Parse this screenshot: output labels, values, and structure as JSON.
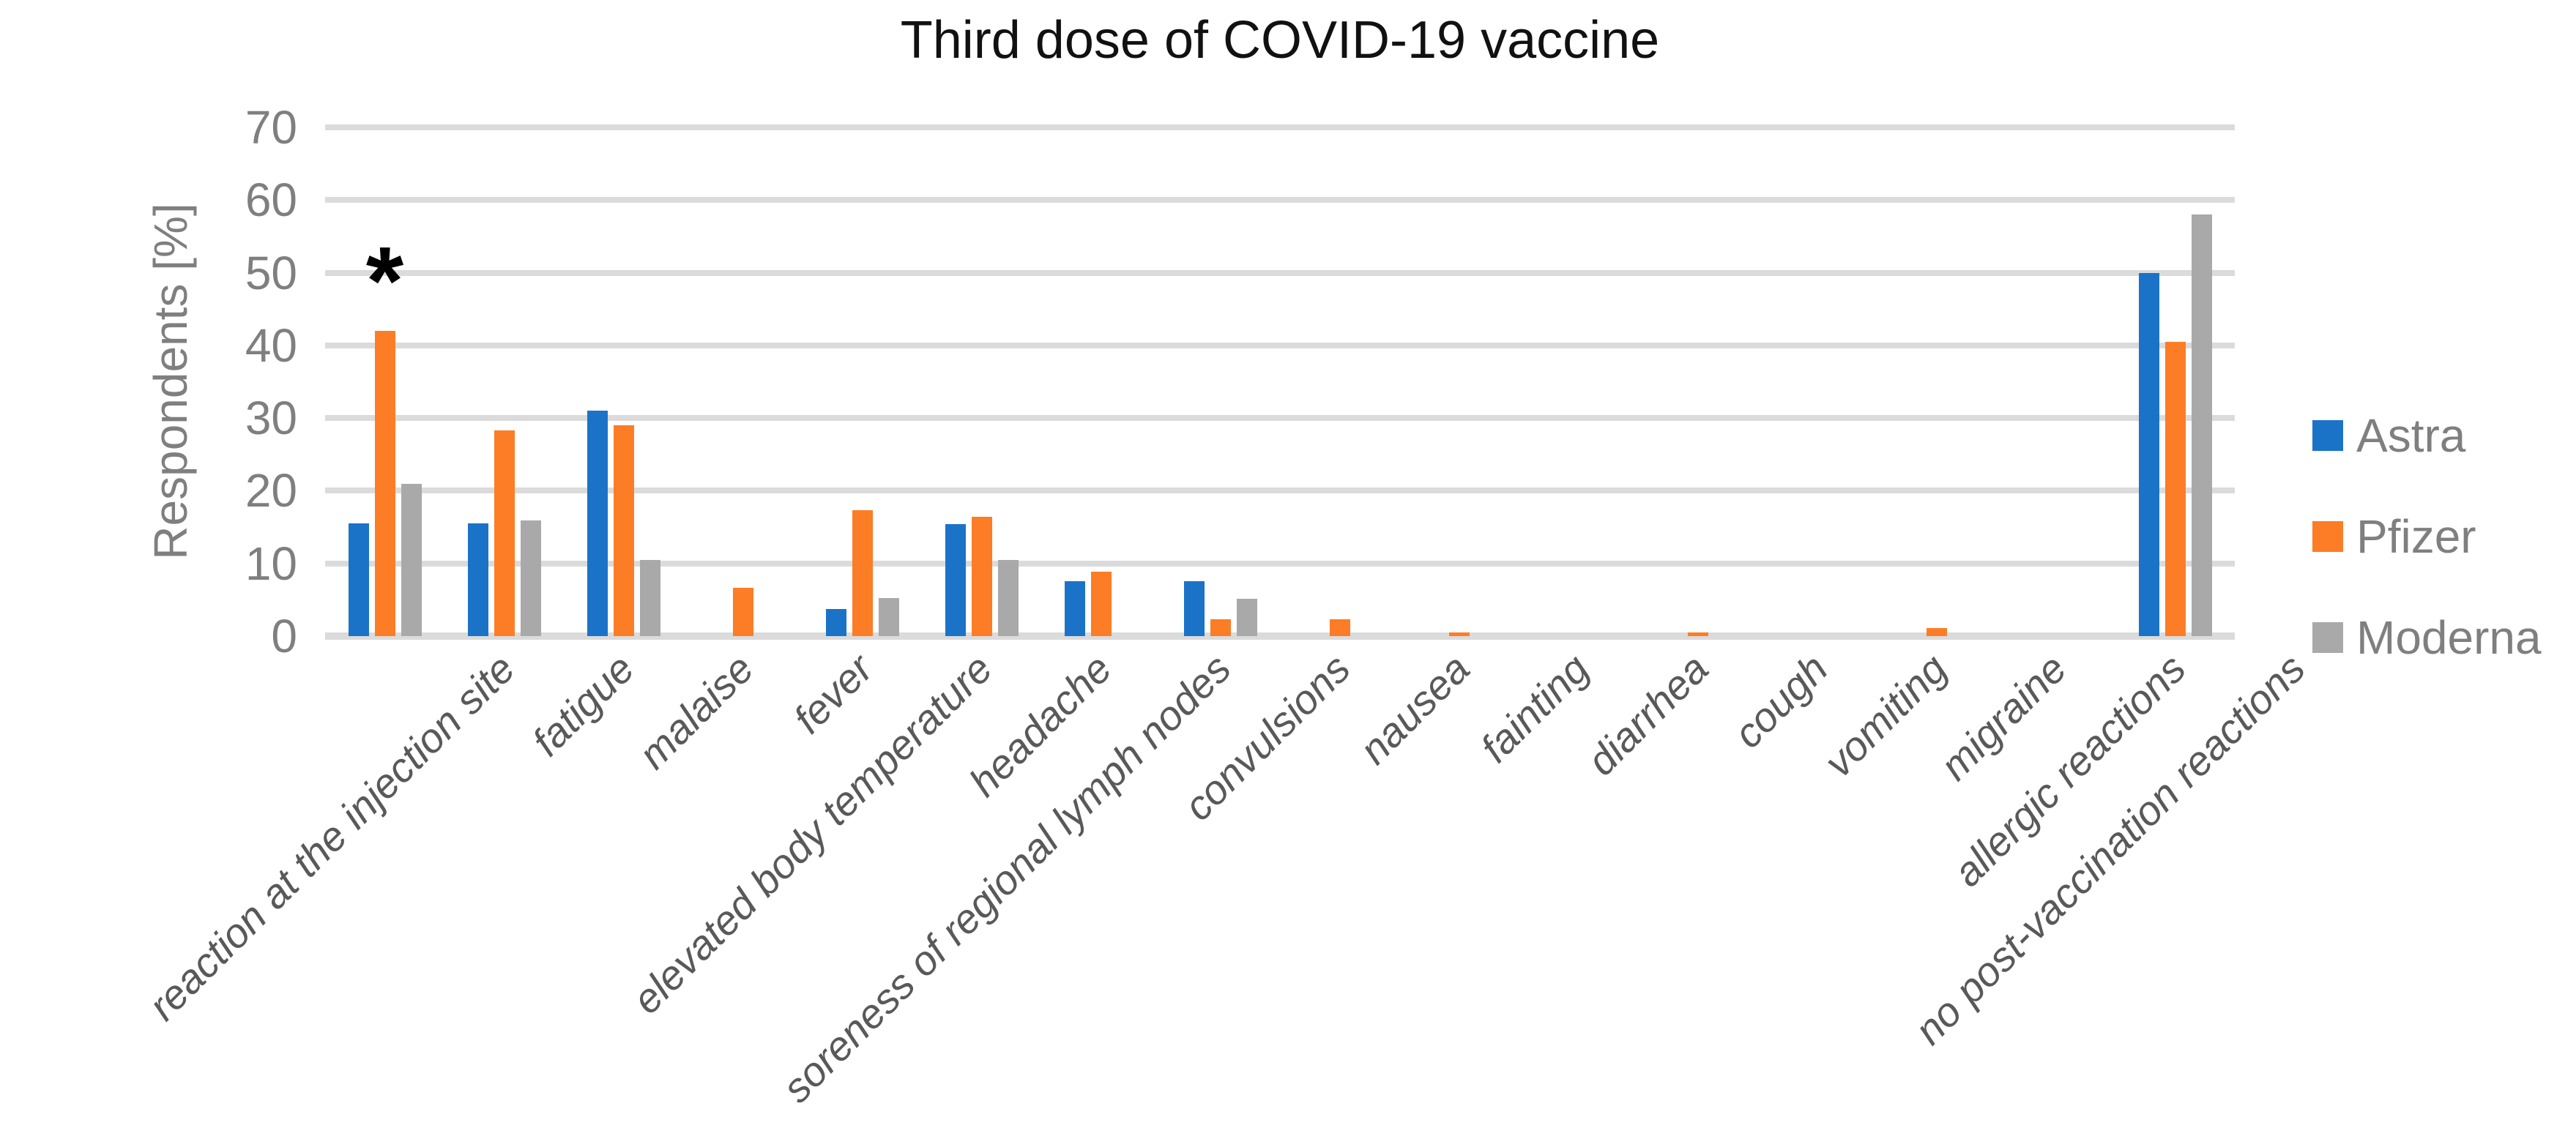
{
  "chart_data": {
    "type": "bar",
    "title": "Third dose of COVID-19 vaccine",
    "ylabel": "Respondents [%]",
    "ylim": [
      0,
      70
    ],
    "yticks": [
      0,
      10,
      20,
      30,
      40,
      50,
      60,
      70
    ],
    "grid": true,
    "legend_position": "right",
    "categories": [
      "reaction at the injection site",
      "fatigue",
      "malaise",
      "fever",
      "elevated body temperature",
      "headache",
      "soreness of regional lymph nodes",
      "convulsions",
      "nausea",
      "fainting",
      "diarrhea",
      "cough",
      "vomiting",
      "migraine",
      "allergic reactions",
      "no post-vaccination reactions"
    ],
    "series": [
      {
        "name": "Astra",
        "color": "#1B73C8",
        "values": [
          15.5,
          15.5,
          31,
          0,
          3.7,
          15.4,
          7.6,
          7.6,
          0,
          0,
          0,
          0,
          0,
          0,
          0,
          50
        ]
      },
      {
        "name": "Pfizer",
        "color": "#FC7D26",
        "values": [
          42,
          28.3,
          29,
          6.6,
          17.3,
          16.4,
          8.9,
          2.3,
          2.3,
          0.5,
          0,
          0.5,
          0,
          1.1,
          0,
          40.5
        ]
      },
      {
        "name": "Moderna",
        "color": "#A9A9A9",
        "values": [
          21,
          15.9,
          10.5,
          0,
          5.2,
          10.5,
          0,
          5.1,
          0,
          0,
          0,
          0,
          0,
          0,
          0,
          58
        ]
      }
    ],
    "annotations": [
      {
        "text": "*",
        "category_index": 0,
        "series_index": 1,
        "at_value": 50
      }
    ]
  },
  "style": {
    "background": "#FFFFFF",
    "gridline_color": "#DBDBDB",
    "axis_text_color": "#7F7F7F",
    "category_text_color": "#595959",
    "title_color": "#111111",
    "annotation_color": "#000000"
  }
}
